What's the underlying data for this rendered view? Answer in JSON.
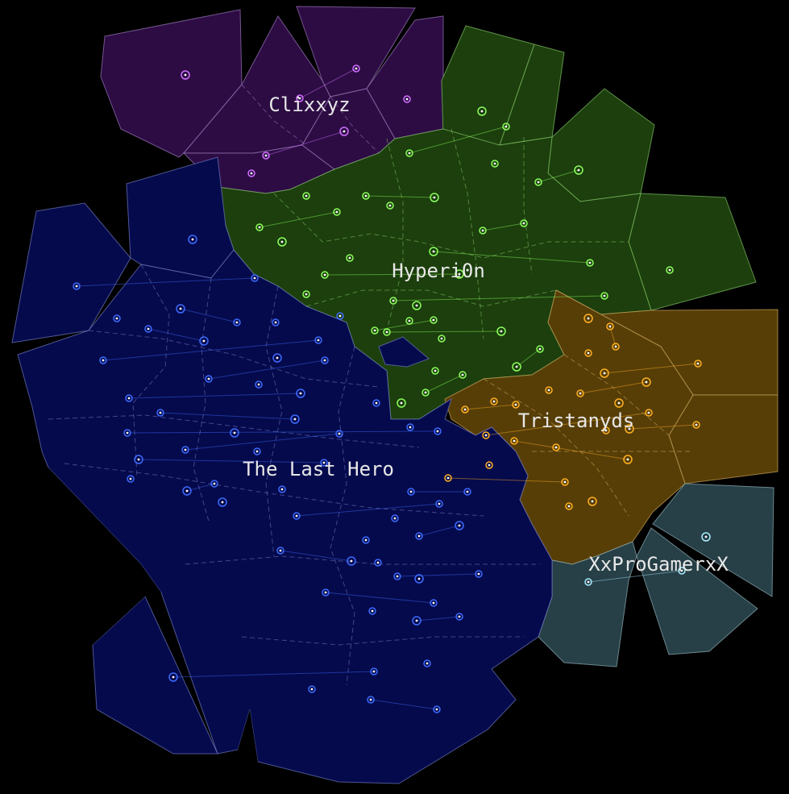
{
  "background": "#000000",
  "players": [
    {
      "id": "clixxyz",
      "name": "Clixxyz",
      "fill": "#2d0c44",
      "edge": "#9a78b8",
      "planet": "#d070ff"
    },
    {
      "id": "hyperion",
      "name": "Hyperi0n",
      "fill": "#1c3f0d",
      "edge": "#7fbf62",
      "planet": "#8cff5c"
    },
    {
      "id": "lasthero",
      "name": "The Last Hero",
      "fill": "#050a4c",
      "edge": "#6f79c0",
      "planet": "#3d6bff"
    },
    {
      "id": "tristanyds",
      "name": "Tristanyds",
      "fill": "#573e07",
      "edge": "#c8a25a",
      "planet": "#ffb020"
    },
    {
      "id": "xxprogamerxx",
      "name": "XxProGamerxX",
      "fill": "#273f47",
      "edge": "#8fb0b8",
      "planet": "#a8ecff"
    }
  ]
}
